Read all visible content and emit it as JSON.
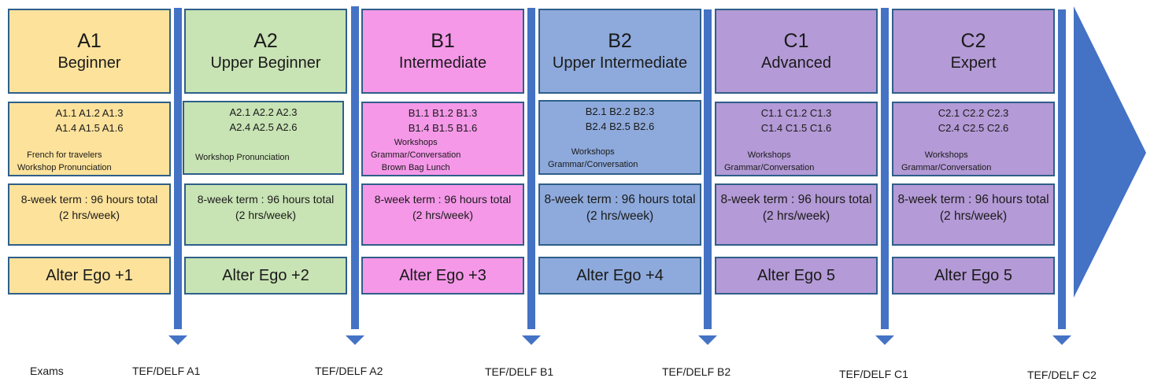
{
  "levels": [
    {
      "code": "A1",
      "name": "Beginner",
      "color": "#fde29b",
      "codes_line1": "A1.1 A1.2  A1.3",
      "codes_line2": "A1.4 A1.5  A1.6",
      "notes": "French for travelers\nWorkshop Pronunciation",
      "term": "8-week term : 96 hours total",
      "term_hours": "(2 hrs/week)",
      "book": "Alter Ego +1",
      "exam": "TEF/DELF A1"
    },
    {
      "code": "A2",
      "name": "Upper Beginner",
      "color": "#c8e3b4",
      "codes_line1": "A2.1 A2.2  A2.3",
      "codes_line2": "A2.4 A2.5  A2.6",
      "notes": "Workshop Pronunciation",
      "term": "8-week term : 96 hours total",
      "term_hours": "(2 hrs/week)",
      "book": "Alter Ego +2",
      "exam": "TEF/DELF A2"
    },
    {
      "code": "B1",
      "name": "Intermediate",
      "color": "#f598e8",
      "codes_line1": "B1.1 B1.2 B1.3",
      "codes_line2": "B1.4 B1.5 B1.6",
      "notes": "Workshops\nGrammar/Conversation\nBrown Bag Lunch",
      "term": "8-week term : 96 hours total",
      "term_hours": "(2 hrs/week)",
      "book": "Alter Ego +3",
      "exam": "TEF/DELF B1"
    },
    {
      "code": "B2",
      "name": "Upper Intermediate",
      "color": "#8eaadc",
      "codes_line1": "B2.1 B2.2 B2.3",
      "codes_line2": "B2.4 B2.5 B2.6",
      "notes": "Workshops\nGrammar/Conversation",
      "term": "8-week term : 96 hours total",
      "term_hours": "(2 hrs/week)",
      "book": "Alter Ego +4",
      "exam": "TEF/DELF B2"
    },
    {
      "code": "C1",
      "name": "Advanced",
      "color": "#b49ad6",
      "codes_line1": "C1.1 C1.2 C1.3",
      "codes_line2": "C1.4 C1.5 C1.6",
      "notes": "Workshops\nGrammar/Conversation",
      "term": "8-week term : 96 hours total",
      "term_hours": "(2 hrs/week)",
      "book": "Alter Ego 5",
      "exam": "TEF/DELF C1"
    },
    {
      "code": "C2",
      "name": "Expert",
      "color": "#b49ad6",
      "codes_line1": "C2.1 C2.2 C2.3",
      "codes_line2": "C2.4 C2.5 C2.6",
      "notes": "Workshops\nGrammar/Conversation",
      "term": "8-week term : 96 hours total",
      "term_hours": "(2 hrs/week)",
      "book": "Alter Ego 5",
      "exam": "TEF/DELF C2"
    }
  ],
  "exams_label": "Exams",
  "colors": {
    "arrow": "#4472c4",
    "border": "#2e5f8a"
  }
}
